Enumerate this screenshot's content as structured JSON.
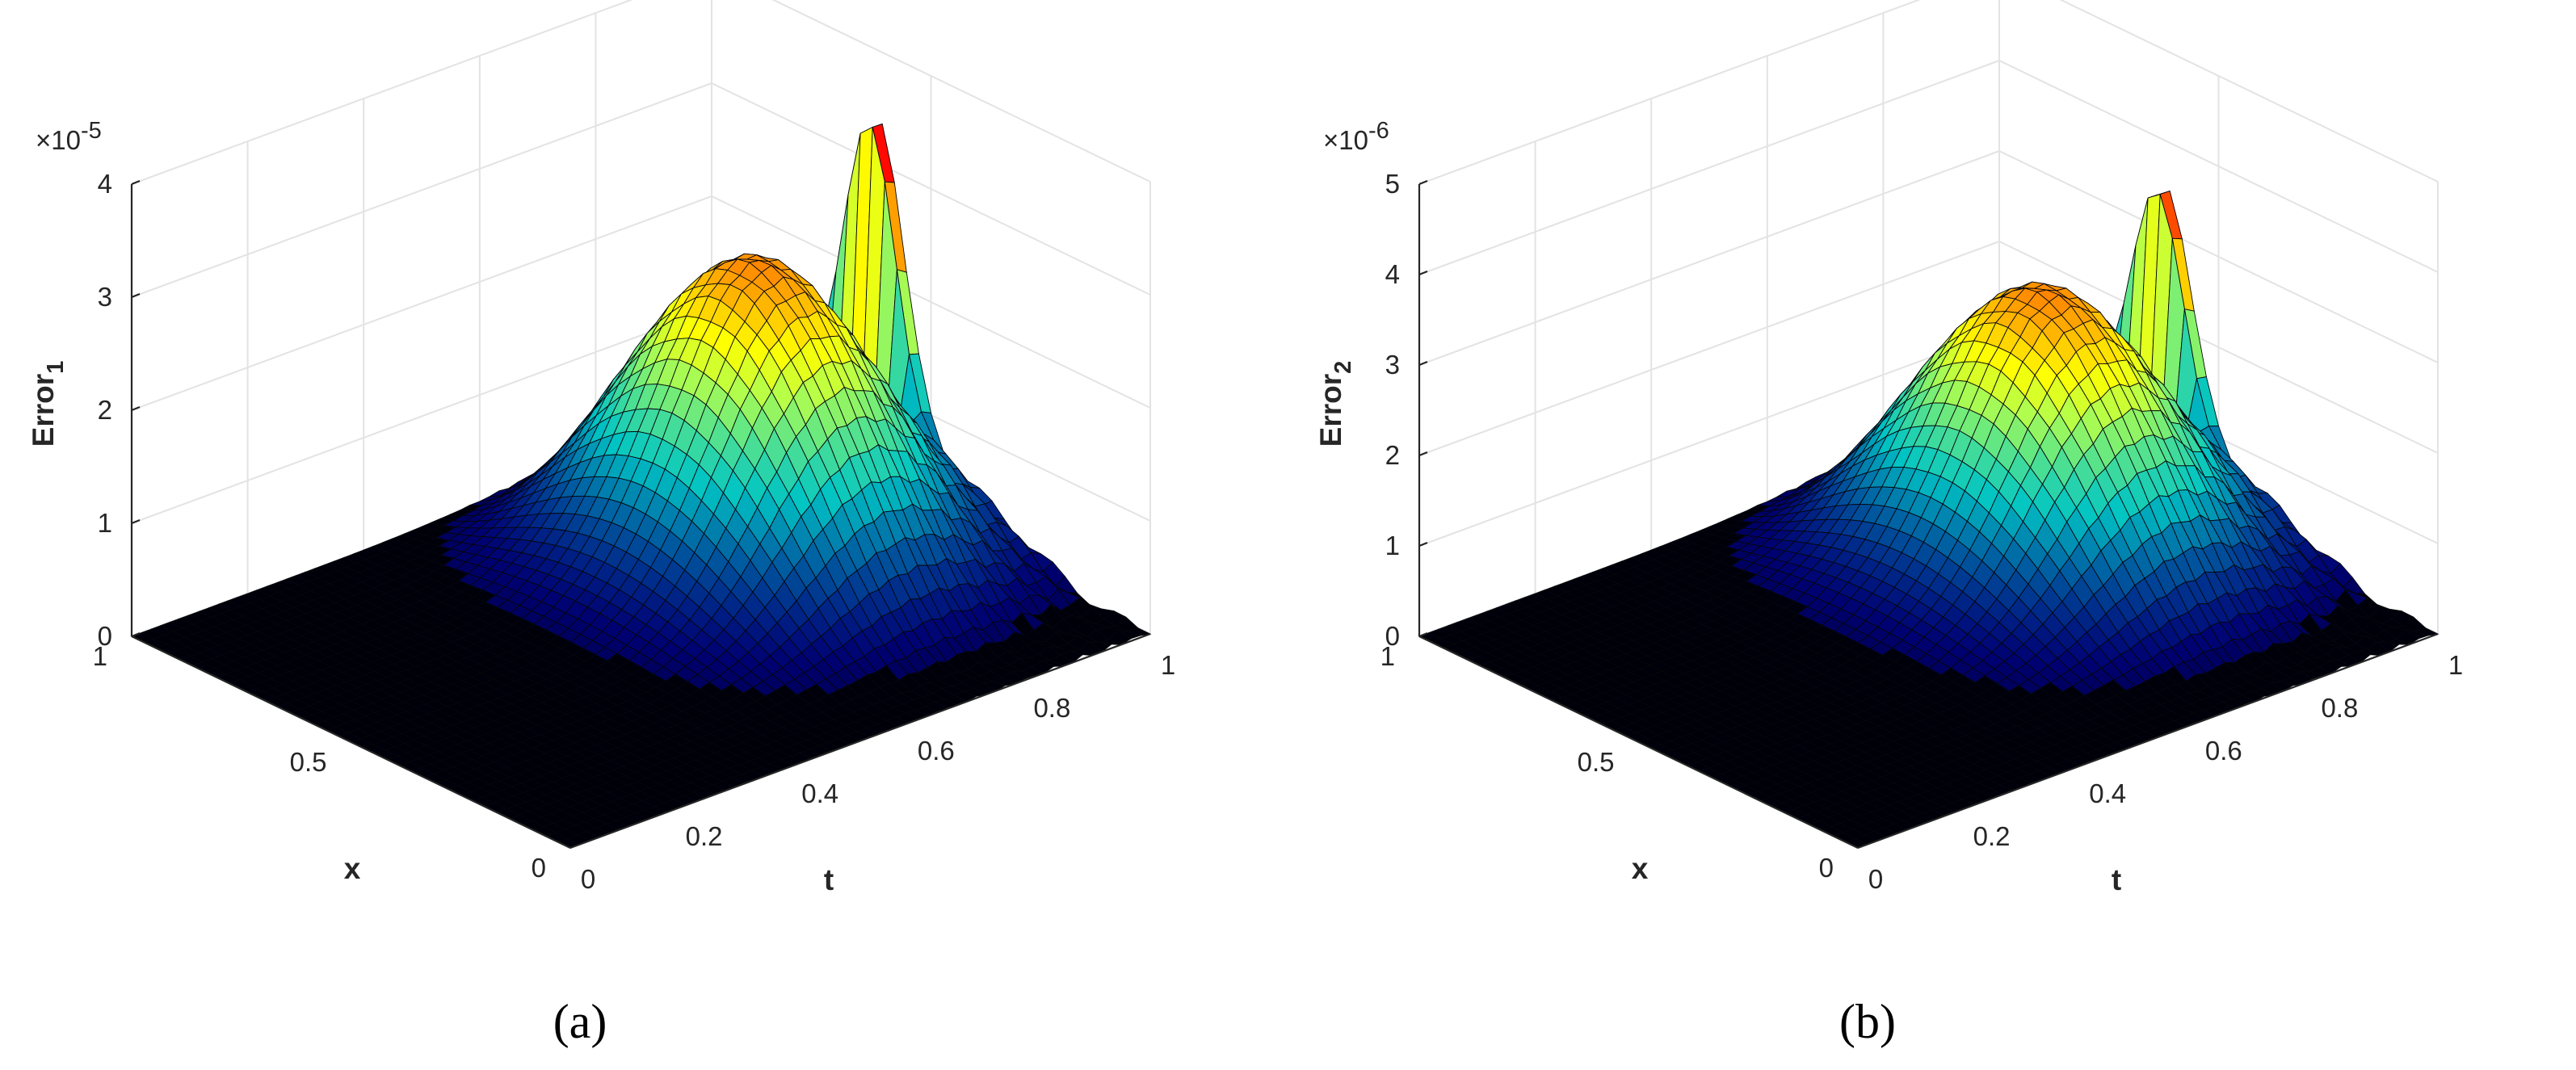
{
  "chart_data": [
    {
      "type": "surface",
      "caption": "(a)",
      "zlabel": "Error",
      "zlabel_sub": "1",
      "xlabel": "t",
      "ylabel": "x",
      "exponent_base": "×10",
      "exponent_power": "-5",
      "t_range": [
        0,
        1
      ],
      "x_range": [
        0,
        1
      ],
      "z_range": [
        0,
        4
      ],
      "t_ticks": [
        "0",
        "0.2",
        "0.4",
        "0.6",
        "0.8",
        "1"
      ],
      "x_ticks": [
        "0",
        "0.5",
        "1"
      ],
      "z_ticks": [
        "0",
        "1",
        "2",
        "3",
        "4"
      ],
      "peak_value": 3.2,
      "peak_t": 0.76,
      "end_spike_value": 3.4,
      "grid": true,
      "colormap": "jet",
      "accent_color": "#1a2ea8"
    },
    {
      "type": "surface",
      "caption": "(b)",
      "zlabel": "Error",
      "zlabel_sub": "2",
      "xlabel": "t",
      "ylabel": "x",
      "exponent_base": "×10",
      "exponent_power": "-6",
      "t_range": [
        0,
        1
      ],
      "x_range": [
        0,
        1
      ],
      "z_range": [
        0,
        5
      ],
      "t_ticks": [
        "0",
        "0.2",
        "0.4",
        "0.6",
        "0.8",
        "1"
      ],
      "x_ticks": [
        "0",
        "0.5",
        "1"
      ],
      "z_ticks": [
        "0",
        "1",
        "2",
        "3",
        "4",
        "5"
      ],
      "peak_value": 3.6,
      "peak_t": 0.76,
      "end_spike_value": 3.5,
      "grid": true,
      "colormap": "jet",
      "accent_color": "#1a2ea8"
    }
  ]
}
